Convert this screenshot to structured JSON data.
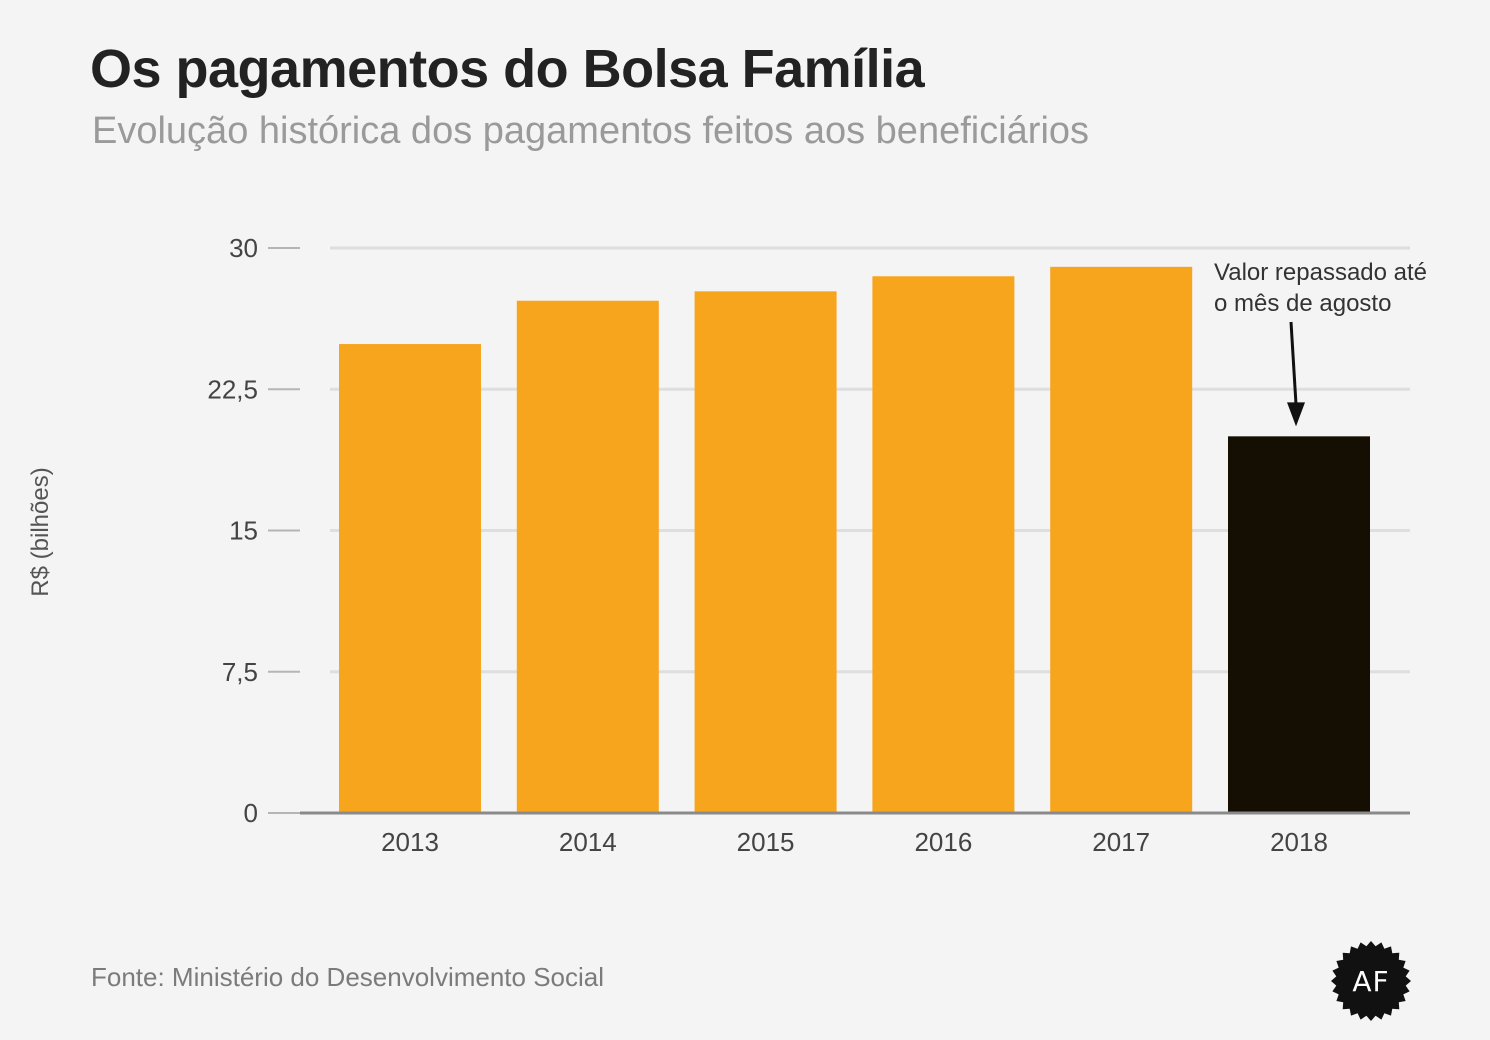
{
  "header": {
    "title": "Os pagamentos do Bolsa Família",
    "subtitle": "Evolução histórica dos pagamentos feitos aos beneficiários"
  },
  "footer": {
    "source": "Fonte: Ministério do Desenvolvimento Social",
    "logo_text": "AF"
  },
  "colors": {
    "bar_default": "#f8a51e",
    "bar_highlight": "#140f02",
    "gridline": "#dedede",
    "baseline": "#8a8a8a",
    "axis_text": "#444444"
  },
  "chart_data": {
    "type": "bar",
    "categories": [
      "2013",
      "2014",
      "2015",
      "2016",
      "2017",
      "2018"
    ],
    "values": [
      24.9,
      27.2,
      27.7,
      28.5,
      29.0,
      20.0
    ],
    "highlight": [
      "2018"
    ],
    "ylabel": "R$ (bilhões)",
    "xlabel": "",
    "ylim": [
      0,
      30
    ],
    "yticks": [
      "0",
      "7,5",
      "15",
      "22,5",
      "30"
    ],
    "ytick_values": [
      0,
      7.5,
      15,
      22.5,
      30
    ],
    "grid": true,
    "annotation": {
      "category": "2018",
      "lines": [
        "Valor repassado até",
        "o mês de  agosto"
      ]
    }
  }
}
